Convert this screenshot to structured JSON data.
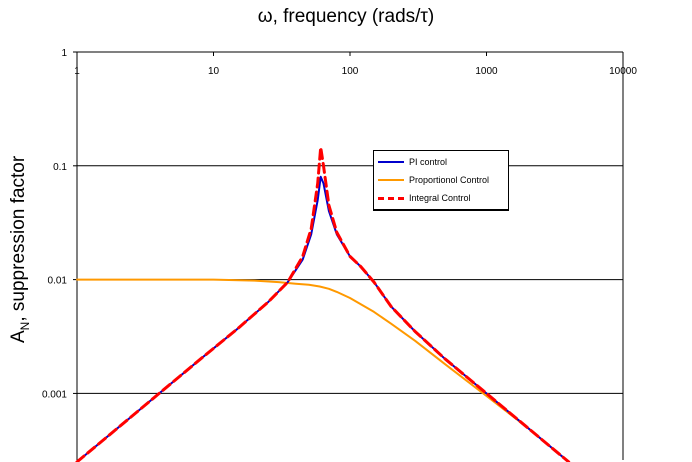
{
  "chart_data": {
    "type": "line",
    "title": "ω, frequency (rads/τ)",
    "xlabel": "ω, frequency (rads/τ)",
    "ylabel_main": "A",
    "ylabel_sub": "N",
    "ylabel_rest": ", suppression factor",
    "x_scale": "log",
    "y_scale": "log",
    "xlim": [
      1,
      10000
    ],
    "ylim": [
      0.00026,
      1
    ],
    "x_ticks": [
      1,
      10,
      100,
      1000,
      10000
    ],
    "x_tick_labels": [
      "1",
      "10",
      "100",
      "1000",
      "10000"
    ],
    "y_ticks": [
      1,
      0.1,
      0.01,
      0.001
    ],
    "y_tick_labels": [
      "1",
      "0.1",
      "0.01",
      "0.001"
    ],
    "x_axis_position": "top",
    "grid": "horizontal major gridlines",
    "legend_position": "upper-right inside plot",
    "series": [
      {
        "name": "PI control",
        "color": "#0000cc",
        "style": "solid",
        "x": [
          1,
          2,
          4,
          8,
          15,
          25,
          35,
          45,
          52,
          58,
          61,
          64,
          70,
          80,
          100,
          120,
          150,
          200,
          300,
          500,
          1000,
          2000,
          4000
        ],
        "y": [
          0.00025,
          0.0005,
          0.001,
          0.002,
          0.0037,
          0.0063,
          0.0095,
          0.015,
          0.025,
          0.05,
          0.08,
          0.07,
          0.04,
          0.025,
          0.016,
          0.013,
          0.0095,
          0.0058,
          0.0035,
          0.002,
          0.001,
          0.0005,
          0.00025
        ]
      },
      {
        "name": "Proportionol Control",
        "color": "#ff9900",
        "style": "solid",
        "x": [
          1,
          5,
          10,
          20,
          30,
          40,
          50,
          60,
          70,
          80,
          100,
          150,
          200,
          300,
          500,
          1000,
          2000,
          4000
        ],
        "y": [
          0.01,
          0.01,
          0.01,
          0.0098,
          0.0095,
          0.0092,
          0.009,
          0.0087,
          0.0083,
          0.0078,
          0.0069,
          0.0052,
          0.0041,
          0.0029,
          0.0018,
          0.00095,
          0.0005,
          0.00025
        ]
      },
      {
        "name": "Integral Control",
        "color": "#ff0000",
        "style": "dashed",
        "x": [
          1,
          2,
          4,
          8,
          15,
          25,
          35,
          45,
          52,
          58,
          61,
          64,
          70,
          80,
          100,
          120,
          150,
          200,
          300,
          500,
          1000,
          2000,
          4000
        ],
        "y": [
          0.00025,
          0.0005,
          0.001,
          0.002,
          0.0037,
          0.0063,
          0.0095,
          0.016,
          0.028,
          0.07,
          0.145,
          0.1,
          0.045,
          0.026,
          0.016,
          0.013,
          0.0095,
          0.0058,
          0.0035,
          0.002,
          0.001,
          0.0005,
          0.00025
        ]
      }
    ]
  }
}
